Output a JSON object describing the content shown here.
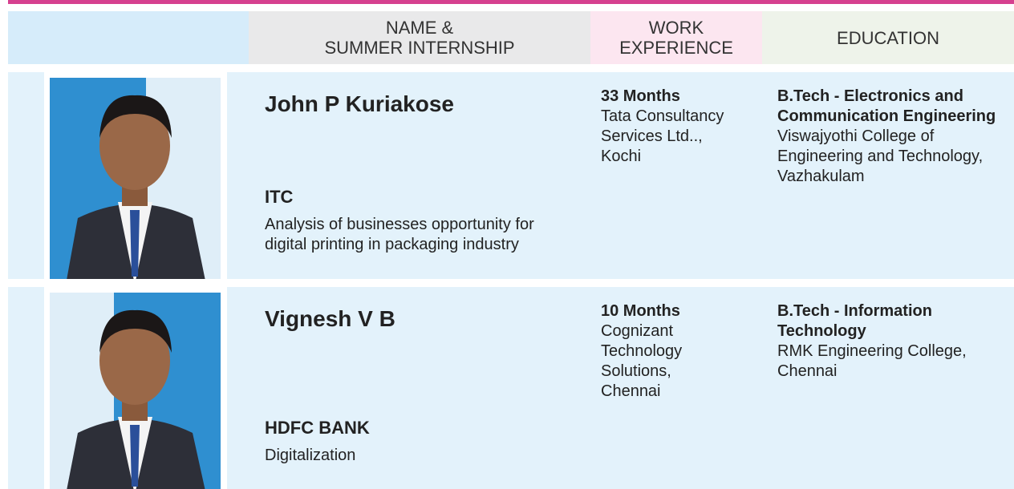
{
  "header": {
    "name_column": [
      "NAME &",
      "SUMMER INTERNSHIP"
    ],
    "work_column": [
      "WORK",
      "EXPERIENCE"
    ],
    "education_column": [
      "EDUCATION"
    ]
  },
  "students": [
    {
      "name": "John P Kuriakose",
      "internship_company": "ITC",
      "internship_project": [
        "Analysis of businesses opportunity for",
        "digital printing in packaging industry"
      ],
      "experience_duration": "33 Months",
      "experience_company": [
        "Tata Consultancy",
        "Services Ltd..,",
        "Kochi"
      ],
      "degree": [
        "B.Tech - Electronics and",
        "Communication Engineering"
      ],
      "college": [
        "Viswajyothi College of",
        "Engineering and Technology,",
        "Vazhakulam"
      ]
    },
    {
      "name": "Vignesh V B",
      "internship_company": "HDFC BANK",
      "internship_project": [
        "Digitalization"
      ],
      "experience_duration": "10 Months",
      "experience_company": [
        "Cognizant",
        "Technology",
        "Solutions,",
        "Chennai"
      ],
      "degree": [
        "B.Tech - Information",
        "Technology"
      ],
      "college": [
        "RMK Engineering College,",
        "Chennai"
      ]
    }
  ]
}
